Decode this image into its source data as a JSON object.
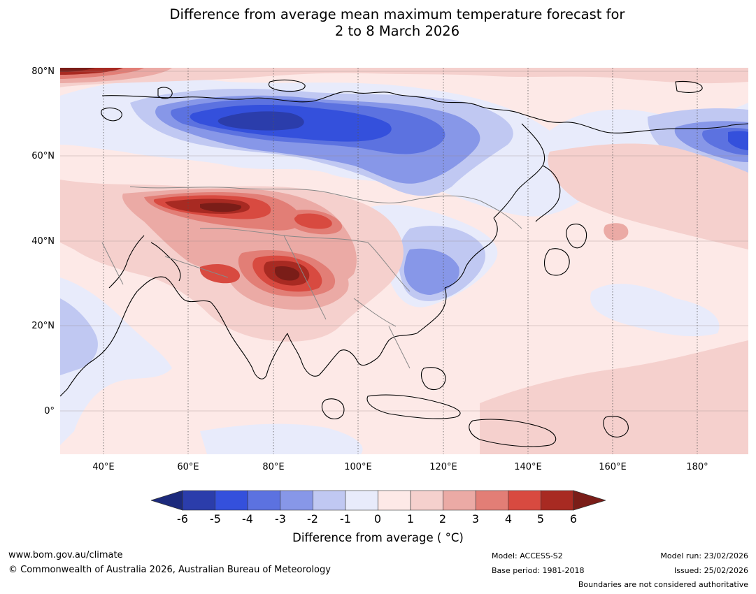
{
  "title_line1": "Difference from average mean maximum temperature forecast for",
  "title_line2": "2 to 8 March 2026",
  "latitude_labels": [
    "80°N",
    "60°N",
    "40°N",
    "20°N",
    "0°"
  ],
  "longitude_labels": [
    "40°E",
    "60°E",
    "80°E",
    "100°E",
    "120°E",
    "140°E",
    "160°E",
    "180°"
  ],
  "colorbar": {
    "ticks": [
      "-6",
      "-5",
      "-4",
      "-3",
      "-2",
      "-1",
      "0",
      "1",
      "2",
      "3",
      "4",
      "5",
      "6"
    ],
    "colors": [
      "#1c2a7c",
      "#2b3dab",
      "#3450dc",
      "#5c72e0",
      "#8797e8",
      "#c0c8f2",
      "#e8ebfb",
      "#fde9e7",
      "#f5d0cd",
      "#ebaaa5",
      "#e27e76",
      "#d84a40",
      "#a82a22",
      "#7a1d18"
    ],
    "label": "Difference from average ( °C)"
  },
  "footer": {
    "website": "www.bom.gov.au/climate",
    "copyright": "© Commonwealth of Australia 2026, Australian Bureau of Meteorology",
    "model": "Model: ACCESS-S2",
    "base_period": "Base period: 1981-2018",
    "model_run": "Model run: 23/02/2026",
    "issued": "Issued: 25/02/2026",
    "disclaimer": "Boundaries are not considered authoritative"
  }
}
